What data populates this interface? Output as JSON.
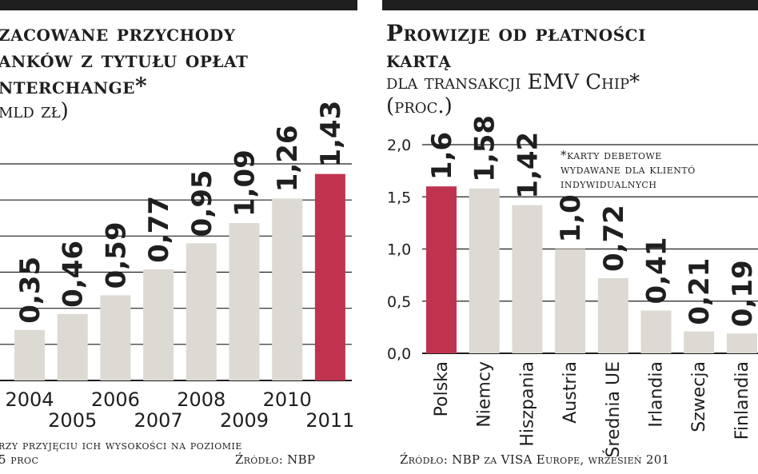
{
  "left": {
    "title_lines": [
      "zacowane przychody",
      "anków z tytułu opłat",
      "nterchange*"
    ],
    "unit": "mld zł)",
    "footnote_lines": [
      "rzy przyjęciu ich wysokości na poziomie",
      "5 proc"
    ],
    "source": "Źródło: NBP"
  },
  "right": {
    "title_lines": [
      "Prowizje od płatności",
      "kartą"
    ],
    "subtitle_lines": [
      "dla transakcji EMV Chip*",
      "(proc.)"
    ],
    "note_lines": [
      "*karty debetowe",
      "wydawane dla klientó",
      "indywidualnych"
    ],
    "source": "Źródło: NBP za VISA Europe, wrzesień 201"
  },
  "colors": {
    "bar": "#dcdad2",
    "highlight": "#c0334f",
    "ink": "#1f1f1f",
    "grid": "#1f1f1f"
  },
  "chart_data": [
    {
      "type": "bar",
      "title": "Szacowane przychody banków z tytułu opłat interchange*",
      "ylabel": "(mld zł)",
      "categories": [
        "2004",
        "2005",
        "2006",
        "2007",
        "2008",
        "2009",
        "2010",
        "2011"
      ],
      "values": [
        0.35,
        0.46,
        0.59,
        0.77,
        0.95,
        1.09,
        1.26,
        1.43
      ],
      "data_labels": [
        "0,35",
        "0,46",
        "0,59",
        "0,77",
        "0,95",
        "1,09",
        "1,26",
        "1,43"
      ],
      "highlight": "2011",
      "ylim": [
        0,
        1.5
      ],
      "grid": true
    },
    {
      "type": "bar",
      "title": "Prowizje od płatności kartą",
      "subtitle": "dla transakcji EMV Chip* (proc.)",
      "categories": [
        "Polska",
        "Niemcy",
        "Hiszpania",
        "Austria",
        "Średnia UE",
        "Irlandia",
        "Szwecja",
        "Finlandia"
      ],
      "values": [
        1.6,
        1.58,
        1.42,
        1.0,
        0.72,
        0.41,
        0.21,
        0.19
      ],
      "data_labels": [
        "1,6",
        "1,58",
        "1,42",
        "1,0",
        "0,72",
        "0,41",
        "0,21",
        "0,19"
      ],
      "yticks": [
        "0,0",
        "0,5",
        "1,0",
        "1,5",
        "2,0"
      ],
      "highlight": "Polska",
      "ylim": [
        0,
        2.0
      ],
      "grid": true
    }
  ]
}
